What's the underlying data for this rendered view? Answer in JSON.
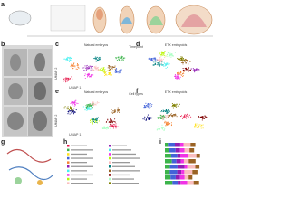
{
  "panel_letters": [
    "a",
    "b",
    "c",
    "d",
    "e",
    "f",
    "g",
    "h",
    "i"
  ],
  "panel_titles": {
    "c": "Natural embryos",
    "d": "ETX embryoids",
    "e": "Natural embryos",
    "f": "ETX embryoids"
  },
  "plot_headers": {
    "timepoint": "Timepoint",
    "cell_types": "Cell types"
  },
  "axis_labels": {
    "x": "UMAP 1",
    "y": "UMAP 2"
  }
}
